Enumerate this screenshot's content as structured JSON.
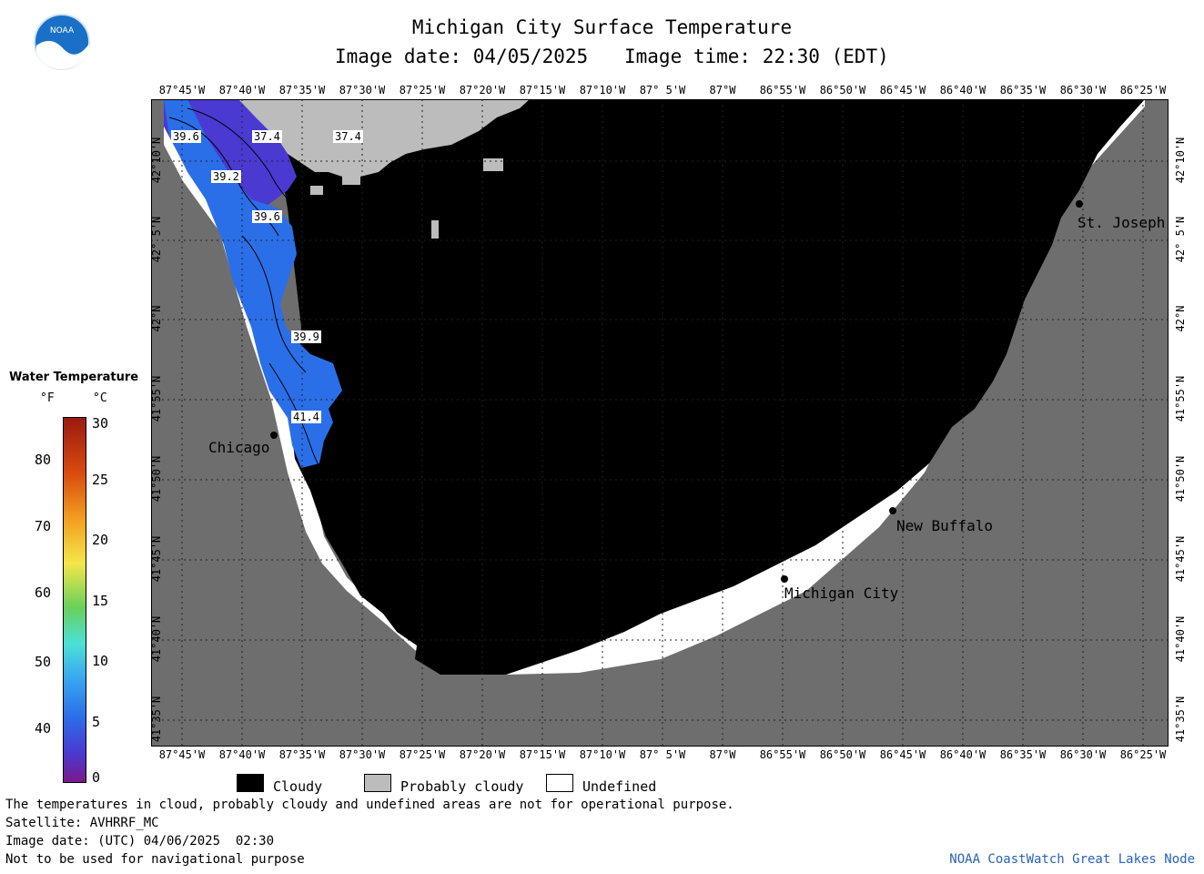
{
  "header": {
    "title": "Michigan City Surface Temperature",
    "image_date": "Image date: 04/05/2025",
    "image_time": "Image time: 22:30 (EDT)"
  },
  "logo": {
    "text": "NOAA",
    "color": "#1a70c6"
  },
  "map": {
    "lon_labels": [
      "87°45'W",
      "87°40'W",
      "87°35'W",
      "87°30'W",
      "87°25'W",
      "87°20'W",
      "87°15'W",
      "87°10'W",
      "87° 5'W",
      "87°W",
      "86°55'W",
      "86°50'W",
      "86°45'W",
      "86°40'W",
      "86°35'W",
      "86°30'W",
      "86°25'W"
    ],
    "lat_labels": [
      "42°10'N",
      "42° 5'N",
      "42°N",
      "41°55'N",
      "41°50'N",
      "41°45'N",
      "41°40'N",
      "41°35'N"
    ],
    "contour_labels": [
      "39.6",
      "37.4",
      "37.4",
      "39.2",
      "39.6",
      "39.9",
      "41.4"
    ],
    "cities": [
      "Chicago",
      "St. Joseph",
      "New Buffalo",
      "Michigan City"
    ],
    "colors": {
      "cloudy": "#000000",
      "probably_cloudy": "#bcbcbc",
      "land": "#6e6e6e",
      "undefined": "#ffffff",
      "water_cold": "#2b6fe8",
      "water_colder": "#4a3ad2"
    }
  },
  "colorbar": {
    "title": "Water Temperature",
    "unit_f": "°F",
    "unit_c": "°C",
    "f_ticks": [
      "80",
      "70",
      "60",
      "50",
      "40"
    ],
    "c_ticks": [
      "30",
      "25",
      "20",
      "15",
      "10",
      "5",
      "0"
    ]
  },
  "legend": {
    "cloudy": "Cloudy",
    "probably_cloudy": "Probably cloudy",
    "undefined": "Undefined"
  },
  "footer": {
    "note": "The temperatures in cloud, probably cloudy and undefined areas are not for operational purpose.",
    "satellite": "Satellite: AVHRRF_MC",
    "utc_date": "Image date: (UTC) 04/06/2025  02:30",
    "nav": "Not to be used for navigational purpose",
    "credit": "NOAA CoastWatch Great Lakes Node",
    "credit_color": "#2a62b8"
  }
}
